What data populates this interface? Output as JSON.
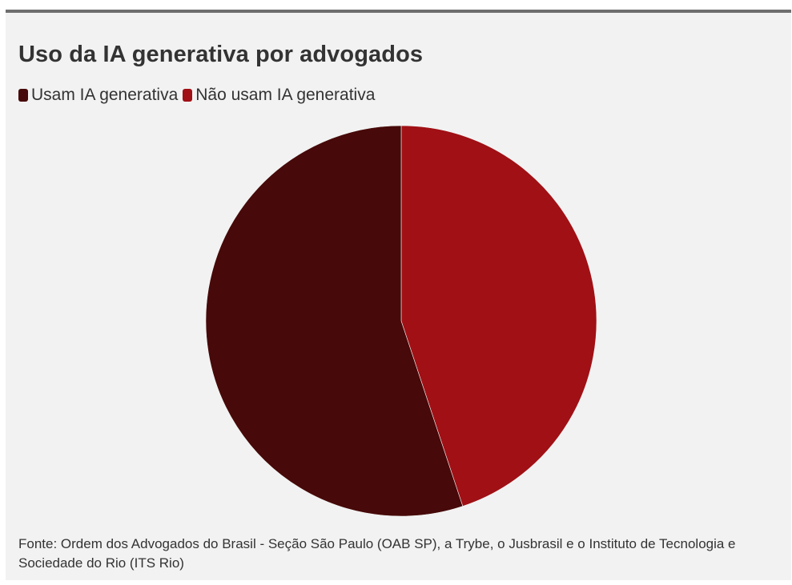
{
  "chart_data": {
    "type": "pie",
    "title": "Uso da IA generativa por advogados",
    "legend_placement": "top-left",
    "slices": [
      {
        "name": "Usam IA generativa",
        "value": 55.1,
        "color": "#470909"
      },
      {
        "name": "Não usam IA generativa",
        "value": 44.9,
        "color": "#a01015"
      }
    ]
  },
  "source": "Fonte: Ordem dos Advogados do Brasil - Seção São Paulo (OAB SP), a Trybe, o Jusbrasil e o Instituto de Tecnologia e Sociedade do Rio (ITS Rio)"
}
